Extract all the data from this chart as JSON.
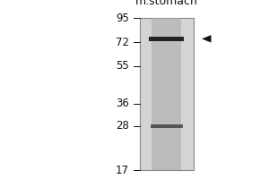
{
  "title": "m.stomach",
  "mw_markers": [
    95,
    72,
    55,
    36,
    28,
    17
  ],
  "band_primary_mw": 75,
  "band_secondary_mw": 28,
  "band_primary_intensity": 0.9,
  "band_secondary_intensity": 0.6,
  "arrow_mw": 75,
  "lane_bg_color": "#cccccc",
  "lane_inner_color": "#aaaaaa",
  "gel_bg": "#d4d4d4",
  "outer_bg": "#ffffff",
  "band_color": "#111111",
  "marker_color": "#111111",
  "title_fontsize": 9,
  "marker_fontsize": 8.5,
  "arrow_color": "#111111"
}
